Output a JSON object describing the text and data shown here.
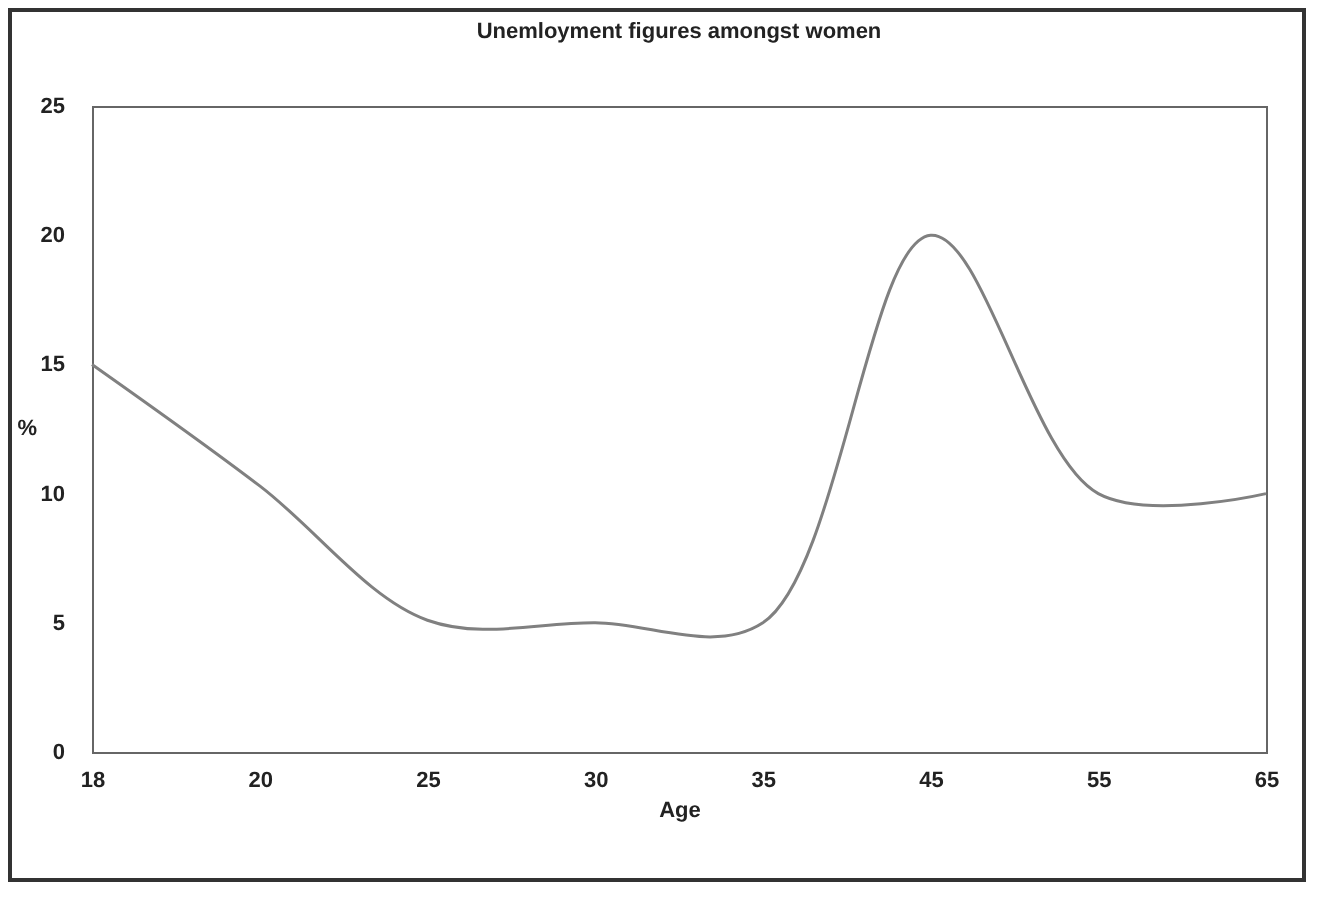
{
  "chart_data": {
    "type": "line",
    "title": "Unemloyment figures amongst women",
    "xlabel": "Age",
    "ylabel": "%",
    "categories": [
      "18",
      "20",
      "25",
      "30",
      "35",
      "45",
      "55",
      "65"
    ],
    "series": [
      {
        "color": "#808080",
        "values": [
          15,
          10.3,
          5.1,
          5,
          5,
          20,
          10,
          10
        ]
      }
    ],
    "ylim": [
      0,
      25
    ],
    "yticks": [
      0,
      5,
      10,
      15,
      20,
      25
    ],
    "grid": false,
    "legend": false,
    "marker": "none",
    "line_style": "solid"
  }
}
